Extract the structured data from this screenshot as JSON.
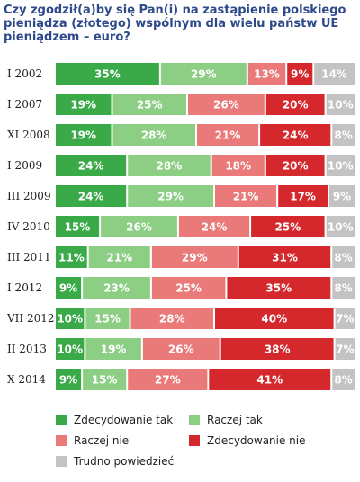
{
  "chart_data": {
    "type": "bar",
    "orientation": "horizontal",
    "stacked": true,
    "title": "Czy zgodził(a)by się Pan(i) na zastąpienie polskiego pieniądza (złotego) wspólnym dla wielu państw UE pieniądzem – euro?",
    "categories": [
      "I 2002",
      "I 2007",
      "XI 2008",
      "I 2009",
      "III 2009",
      "IV 2010",
      "III 2011",
      "I 2012",
      "VII 2012",
      "II 2013",
      "X 2014"
    ],
    "series": [
      {
        "name": "Zdecydowanie tak",
        "color": "#3aaa48",
        "values": [
          35,
          19,
          19,
          24,
          24,
          15,
          11,
          9,
          10,
          10,
          9
        ]
      },
      {
        "name": "Raczej tak",
        "color": "#8ccf84",
        "values": [
          29,
          25,
          28,
          28,
          29,
          26,
          21,
          23,
          15,
          19,
          15
        ]
      },
      {
        "name": "Raczej nie",
        "color": "#ea7a7a",
        "values": [
          13,
          26,
          21,
          18,
          21,
          24,
          29,
          25,
          28,
          26,
          27
        ]
      },
      {
        "name": "Zdecydowanie nie",
        "color": "#d4282c",
        "values": [
          9,
          20,
          24,
          20,
          17,
          25,
          31,
          35,
          40,
          38,
          41
        ]
      },
      {
        "name": "Trudno powiedzieć",
        "color": "#c3c3c3",
        "values": [
          14,
          10,
          8,
          10,
          9,
          10,
          8,
          8,
          7,
          7,
          8
        ]
      }
    ],
    "value_suffix": "%",
    "xlim": [
      0,
      100
    ],
    "grid": false,
    "legend_position": "bottom"
  }
}
